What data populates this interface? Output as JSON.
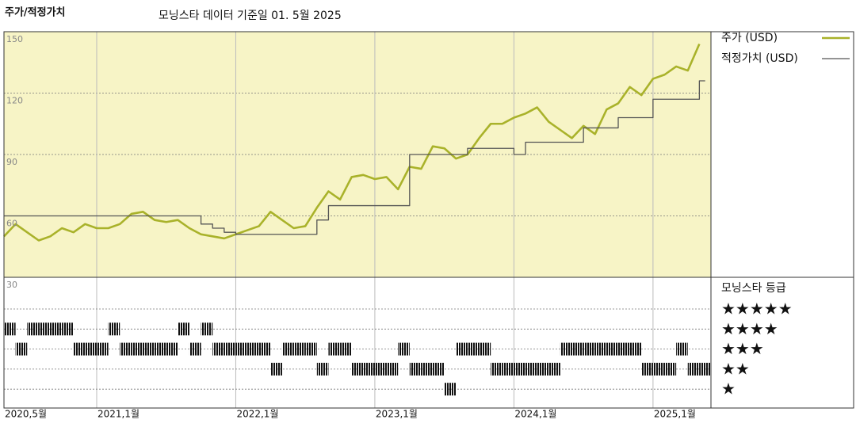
{
  "chart_data": {
    "type": "line",
    "title": "주가/적정가치",
    "subtitle": "모닝스타 데이터 기준일 01. 5월 2025",
    "x": [
      "2020-05",
      "2020-06",
      "2020-07",
      "2020-08",
      "2020-09",
      "2020-10",
      "2020-11",
      "2020-12",
      "2021-01",
      "2021-02",
      "2021-03",
      "2021-04",
      "2021-05",
      "2021-06",
      "2021-07",
      "2021-08",
      "2021-09",
      "2021-10",
      "2021-11",
      "2021-12",
      "2022-01",
      "2022-02",
      "2022-03",
      "2022-04",
      "2022-05",
      "2022-06",
      "2022-07",
      "2022-08",
      "2022-09",
      "2022-10",
      "2022-11",
      "2022-12",
      "2023-01",
      "2023-02",
      "2023-03",
      "2023-04",
      "2023-05",
      "2023-06",
      "2023-07",
      "2023-08",
      "2023-09",
      "2023-10",
      "2023-11",
      "2023-12",
      "2024-01",
      "2024-02",
      "2024-03",
      "2024-04",
      "2024-05",
      "2024-06",
      "2024-07",
      "2024-08",
      "2024-09",
      "2024-10",
      "2024-11",
      "2024-12",
      "2025-01",
      "2025-02",
      "2025-03",
      "2025-04",
      "2025-05"
    ],
    "xlim": [
      "2020-05",
      "2025-06"
    ],
    "xticks": [
      {
        "value": "2020-05",
        "label": "2020,5월"
      },
      {
        "value": "2021-01",
        "label": "2021,1월"
      },
      {
        "value": "2022-01",
        "label": "2022,1월"
      },
      {
        "value": "2023-01",
        "label": "2023,1월"
      },
      {
        "value": "2024-01",
        "label": "2024,1월"
      },
      {
        "value": "2025-01",
        "label": "2025,1월"
      }
    ],
    "ylim": [
      30,
      150
    ],
    "yticks": [
      30,
      60,
      90,
      120,
      150
    ],
    "grid": true,
    "series": [
      {
        "name": "주가 (USD)",
        "color": "#a9b22a",
        "values": [
          50,
          56,
          52,
          48,
          50,
          54,
          52,
          56,
          54,
          54,
          56,
          61,
          62,
          58,
          57,
          58,
          54,
          51,
          50,
          49,
          51,
          53,
          55,
          62,
          58,
          54,
          55,
          64,
          72,
          68,
          79,
          80,
          78,
          79,
          73,
          84,
          83,
          94,
          93,
          88,
          90,
          98,
          105,
          105,
          108,
          110,
          113,
          106,
          102,
          98,
          104,
          100,
          112,
          115,
          123,
          119,
          127,
          129,
          133,
          131,
          144
        ]
      },
      {
        "name": "적정가치 (USD)",
        "color": "#555555",
        "step": true,
        "values": [
          60,
          60,
          60,
          60,
          60,
          60,
          60,
          60,
          60,
          60,
          60,
          60,
          60,
          60,
          60,
          60,
          60,
          56,
          54,
          52,
          51,
          51,
          51,
          51,
          51,
          51,
          51,
          58,
          65,
          65,
          65,
          65,
          65,
          65,
          65,
          90,
          90,
          90,
          90,
          90,
          93,
          93,
          93,
          93,
          90,
          96,
          96,
          96,
          96,
          96,
          103,
          103,
          103,
          108,
          108,
          108,
          117,
          117,
          117,
          117,
          126
        ]
      }
    ],
    "rating_title": "모닝스타 등급",
    "rating_levels": [
      {
        "value": 5,
        "label": "★★★★★"
      },
      {
        "value": 4,
        "label": "★★★★"
      },
      {
        "value": 3,
        "label": "★★★"
      },
      {
        "value": 2,
        "label": "★★"
      },
      {
        "value": 1,
        "label": "★"
      }
    ],
    "ratings": [
      4,
      3,
      4,
      4,
      4,
      4,
      3,
      3,
      3,
      4,
      3,
      3,
      3,
      3,
      3,
      4,
      3,
      4,
      3,
      3,
      3,
      3,
      3,
      2,
      3,
      3,
      3,
      2,
      3,
      3,
      2,
      2,
      2,
      2,
      3,
      2,
      2,
      2,
      1,
      3,
      3,
      3,
      2,
      2,
      2,
      2,
      2,
      2,
      3,
      3,
      3,
      3,
      3,
      3,
      3,
      2,
      2,
      2,
      3,
      2,
      2
    ]
  }
}
